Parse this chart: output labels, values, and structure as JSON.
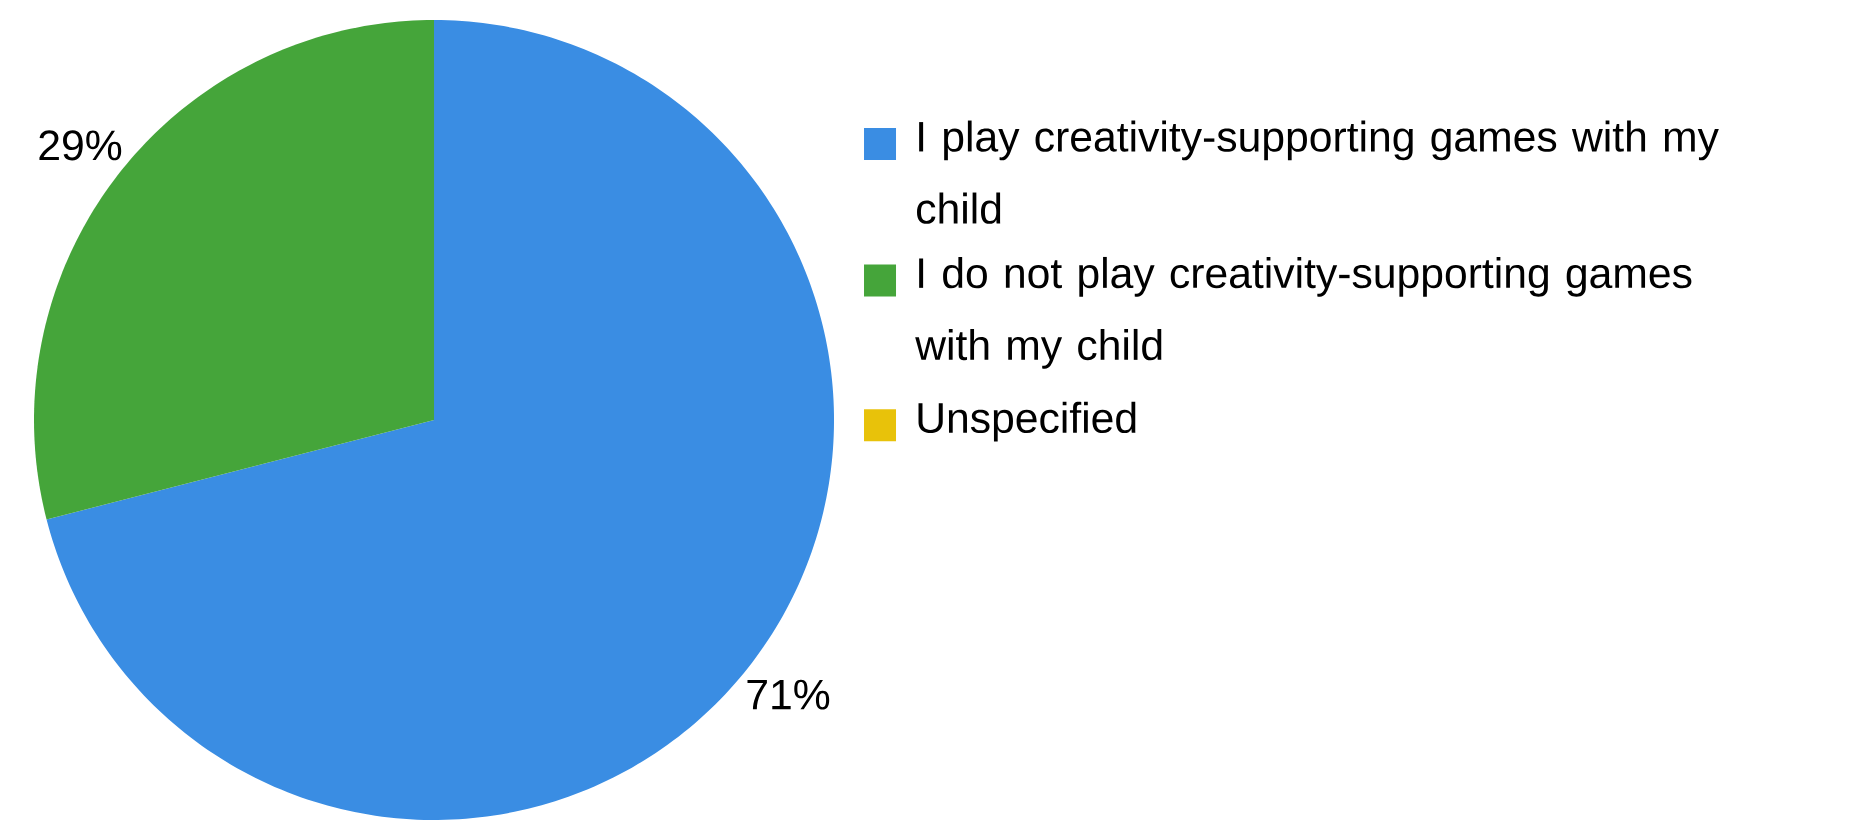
{
  "chart_data": {
    "type": "pie",
    "categories": [
      "I play creativity-supporting games with my child",
      "I do not play creativity-supporting games with my child",
      "Unspecified"
    ],
    "values": [
      71,
      29,
      0
    ],
    "colors": [
      "#3a8de3",
      "#45a53a",
      "#e8c20a"
    ],
    "value_labels": [
      "71%",
      "29%",
      null
    ],
    "legend": "right"
  }
}
